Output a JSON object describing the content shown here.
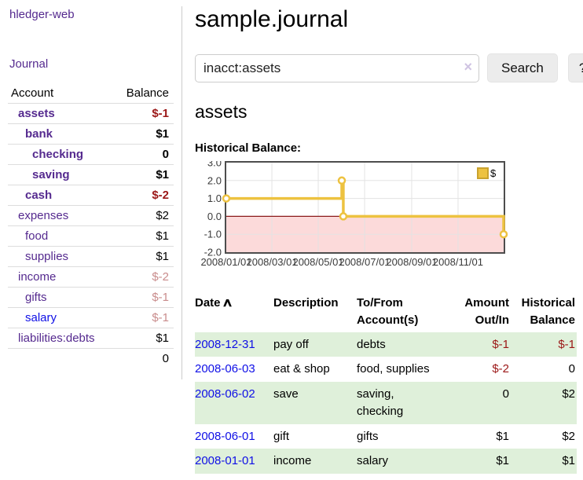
{
  "sidebar": {
    "app_title": "hledger-web",
    "nav_journal": "Journal",
    "accounts_table": {
      "headers": [
        "Account",
        "Balance"
      ],
      "rows": [
        {
          "account": "assets",
          "balance": "$-1",
          "depth": 1,
          "bold": true,
          "balance_style": "negative-strong"
        },
        {
          "account": "bank",
          "balance": "$1",
          "depth": 2,
          "bold": true,
          "balance_style": "normal"
        },
        {
          "account": "checking",
          "balance": "0",
          "depth": 3,
          "bold": true,
          "balance_style": "normal"
        },
        {
          "account": "saving",
          "balance": "$1",
          "depth": 3,
          "bold": true,
          "balance_style": "normal"
        },
        {
          "account": "cash",
          "balance": "$-2",
          "depth": 2,
          "bold": true,
          "balance_style": "negative-strong"
        },
        {
          "account": "expenses",
          "balance": "$2",
          "depth": 1,
          "bold": false,
          "balance_style": "normal"
        },
        {
          "account": "food",
          "balance": "$1",
          "depth": 2,
          "bold": false,
          "balance_style": "normal"
        },
        {
          "account": "supplies",
          "balance": "$1",
          "depth": 2,
          "bold": false,
          "balance_style": "normal"
        },
        {
          "account": "income",
          "balance": "$-2",
          "depth": 1,
          "bold": false,
          "balance_style": "negative-soft"
        },
        {
          "account": "gifts",
          "balance": "$-1",
          "depth": 2,
          "bold": false,
          "balance_style": "negative-soft"
        },
        {
          "account": "salary",
          "balance": "$-1",
          "depth": 2,
          "bold": false,
          "balance_style": "negative-soft",
          "link_style": "blue"
        },
        {
          "account": "liabilities:debts",
          "balance": "$1",
          "depth": 1,
          "bold": false,
          "balance_style": "normal"
        }
      ],
      "total": "0"
    }
  },
  "main": {
    "title": "sample.journal",
    "search": {
      "value": "inacct:assets",
      "clear_icon": "×",
      "search_button": "Search",
      "help_button": "?"
    },
    "account_heading": "assets",
    "chart_label": "Historical Balance:"
  },
  "chart_data": {
    "type": "line",
    "step": true,
    "title": "Historical Balance",
    "series": [
      {
        "name": "$",
        "color": "#edc240",
        "points": [
          {
            "date": "2008-01-01",
            "day": 0,
            "value": 1
          },
          {
            "date": "2008-06-01",
            "day": 152,
            "value": 2
          },
          {
            "date": "2008-06-02",
            "day": 153,
            "value": 2
          },
          {
            "date": "2008-06-03",
            "day": 154,
            "value": 0
          },
          {
            "date": "2008-12-31",
            "day": 365,
            "value": -1
          }
        ]
      }
    ],
    "x_ticks": [
      {
        "day": 0,
        "label": "2008/01/01"
      },
      {
        "day": 60,
        "label": "2008/03/01"
      },
      {
        "day": 121,
        "label": "2008/05/01"
      },
      {
        "day": 182,
        "label": "2008/07/01"
      },
      {
        "day": 244,
        "label": "2008/09/01"
      },
      {
        "day": 305,
        "label": "2008/11/01"
      }
    ],
    "y_ticks": [
      {
        "value": 3,
        "label": "3.0"
      },
      {
        "value": 2,
        "label": "2.0"
      },
      {
        "value": 1,
        "label": "1.0"
      },
      {
        "value": 0,
        "label": "0.0"
      },
      {
        "value": -1,
        "label": "-1.0"
      },
      {
        "value": -2,
        "label": "-2.0"
      }
    ],
    "ylim": [
      -2,
      3
    ],
    "xlim_days": [
      0,
      365
    ],
    "grid": true,
    "legend_position": "top-right",
    "colors": {
      "negative_region": "#fcdada",
      "zero_line": "#8b1a1a",
      "grid_line": "#e3e3e3",
      "plot_border": "#4d4d4d",
      "marker_fill": "#ffffff"
    }
  },
  "register_table": {
    "sort_icon": "∧",
    "headers": [
      "Date",
      "Description",
      "To/From Account(s)",
      "Amount Out/In",
      "Historical Balance"
    ],
    "rows": [
      {
        "date": "2008-12-31",
        "description": "pay off",
        "accounts": "debts",
        "amount": "$-1",
        "balance": "$-1",
        "amount_negative": true,
        "balance_negative": true
      },
      {
        "date": "2008-06-03",
        "description": "eat & shop",
        "accounts": "food, supplies",
        "amount": "$-2",
        "balance": "0",
        "amount_negative": true,
        "balance_negative": false
      },
      {
        "date": "2008-06-02",
        "description": "save",
        "accounts": "saving, checking",
        "amount": "0",
        "balance": "$2",
        "amount_negative": false,
        "balance_negative": false
      },
      {
        "date": "2008-06-01",
        "description": "gift",
        "accounts": "gifts",
        "amount": "$1",
        "balance": "$2",
        "amount_negative": false,
        "balance_negative": false
      },
      {
        "date": "2008-01-01",
        "description": "income",
        "accounts": "salary",
        "amount": "$1",
        "balance": "$1",
        "amount_negative": false,
        "balance_negative": false
      }
    ]
  },
  "ui_colors": {
    "link_purple": "#552a8f",
    "link_blue": "#0f0fe6",
    "negative_strong": "#9b1717",
    "negative_soft": "#c98c8c",
    "row_stripe_green": "#dff0da",
    "button_gray": "#ececec"
  }
}
